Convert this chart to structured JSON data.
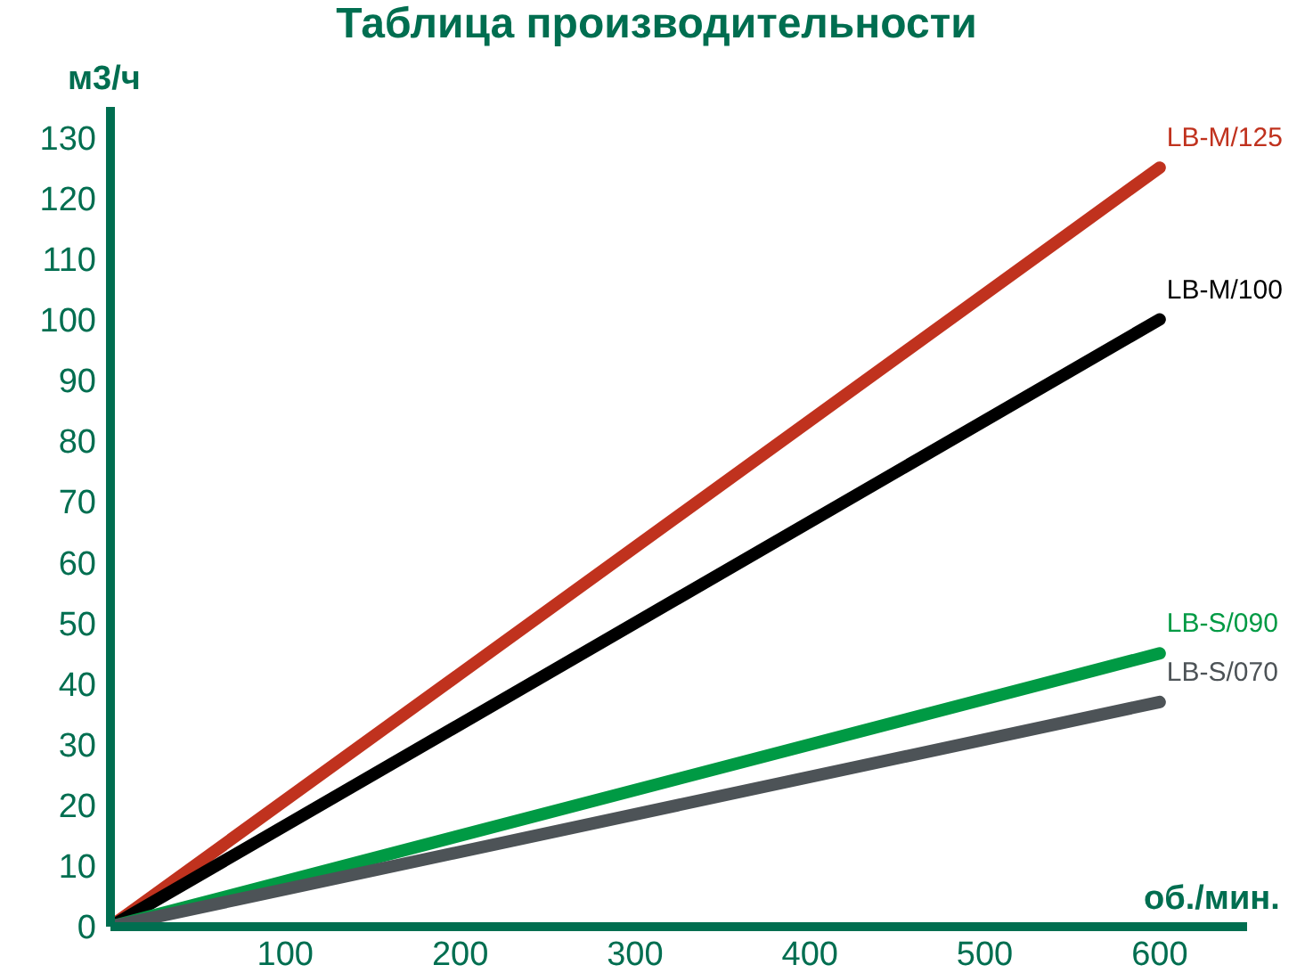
{
  "chart_data": {
    "type": "line",
    "title": "Таблица производительности",
    "xlabel": "об./мин.",
    "ylabel": "м3/ч",
    "x": [
      0,
      600
    ],
    "series": [
      {
        "name": "LB-M/125",
        "color": "#c0321e",
        "values": [
          0,
          125
        ]
      },
      {
        "name": "LB-M/100",
        "color": "#000000",
        "values": [
          0,
          100
        ]
      },
      {
        "name": "LB-S/090",
        "color": "#009a44",
        "values": [
          0,
          45
        ]
      },
      {
        "name": "LB-S/070",
        "color": "#4d5357",
        "values": [
          0,
          37
        ]
      }
    ],
    "xlim": [
      0,
      650
    ],
    "xticks": [
      100,
      200,
      300,
      400,
      500,
      600
    ],
    "ylim": [
      0,
      135
    ],
    "yticks": [
      0,
      10,
      20,
      30,
      40,
      50,
      60,
      70,
      80,
      90,
      100,
      110,
      120,
      130
    ],
    "grid": false,
    "legend": false,
    "marker": "none",
    "line_style": "solid"
  }
}
